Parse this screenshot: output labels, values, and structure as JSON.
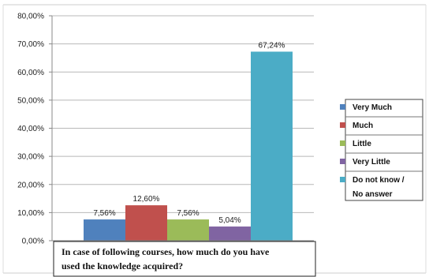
{
  "chart_data": {
    "type": "bar",
    "categories": [
      "Very Much",
      "Much",
      "Little",
      "Very Little",
      "Do not know / No answer"
    ],
    "values": [
      7.56,
      12.6,
      7.56,
      5.04,
      67.24
    ],
    "value_labels": [
      "7,56%",
      "12,60%",
      "7,56%",
      "5,04%",
      "67,24%"
    ],
    "colors": [
      "#4f81bd",
      "#c0504d",
      "#9bbb59",
      "#8064a2",
      "#4bacc6"
    ],
    "ylim": [
      0,
      80
    ],
    "yticks": [
      0,
      10,
      20,
      30,
      40,
      50,
      60,
      70,
      80
    ],
    "ytick_labels": [
      "0,00%",
      "10,00%",
      "20,00%",
      "30,00%",
      "40,00%",
      "50,00%",
      "60,00%",
      "70,00%",
      "80,00%"
    ],
    "legend": {
      "position": "right",
      "entries": [
        [
          "Very Much"
        ],
        [
          "Much"
        ],
        [
          "Little"
        ],
        [
          "Very Little"
        ],
        [
          "Do not know /",
          "No answer"
        ]
      ]
    },
    "caption_lines": [
      "In case of following courses, how much do you have",
      "used the knowledge acquired?"
    ],
    "grid": true
  }
}
